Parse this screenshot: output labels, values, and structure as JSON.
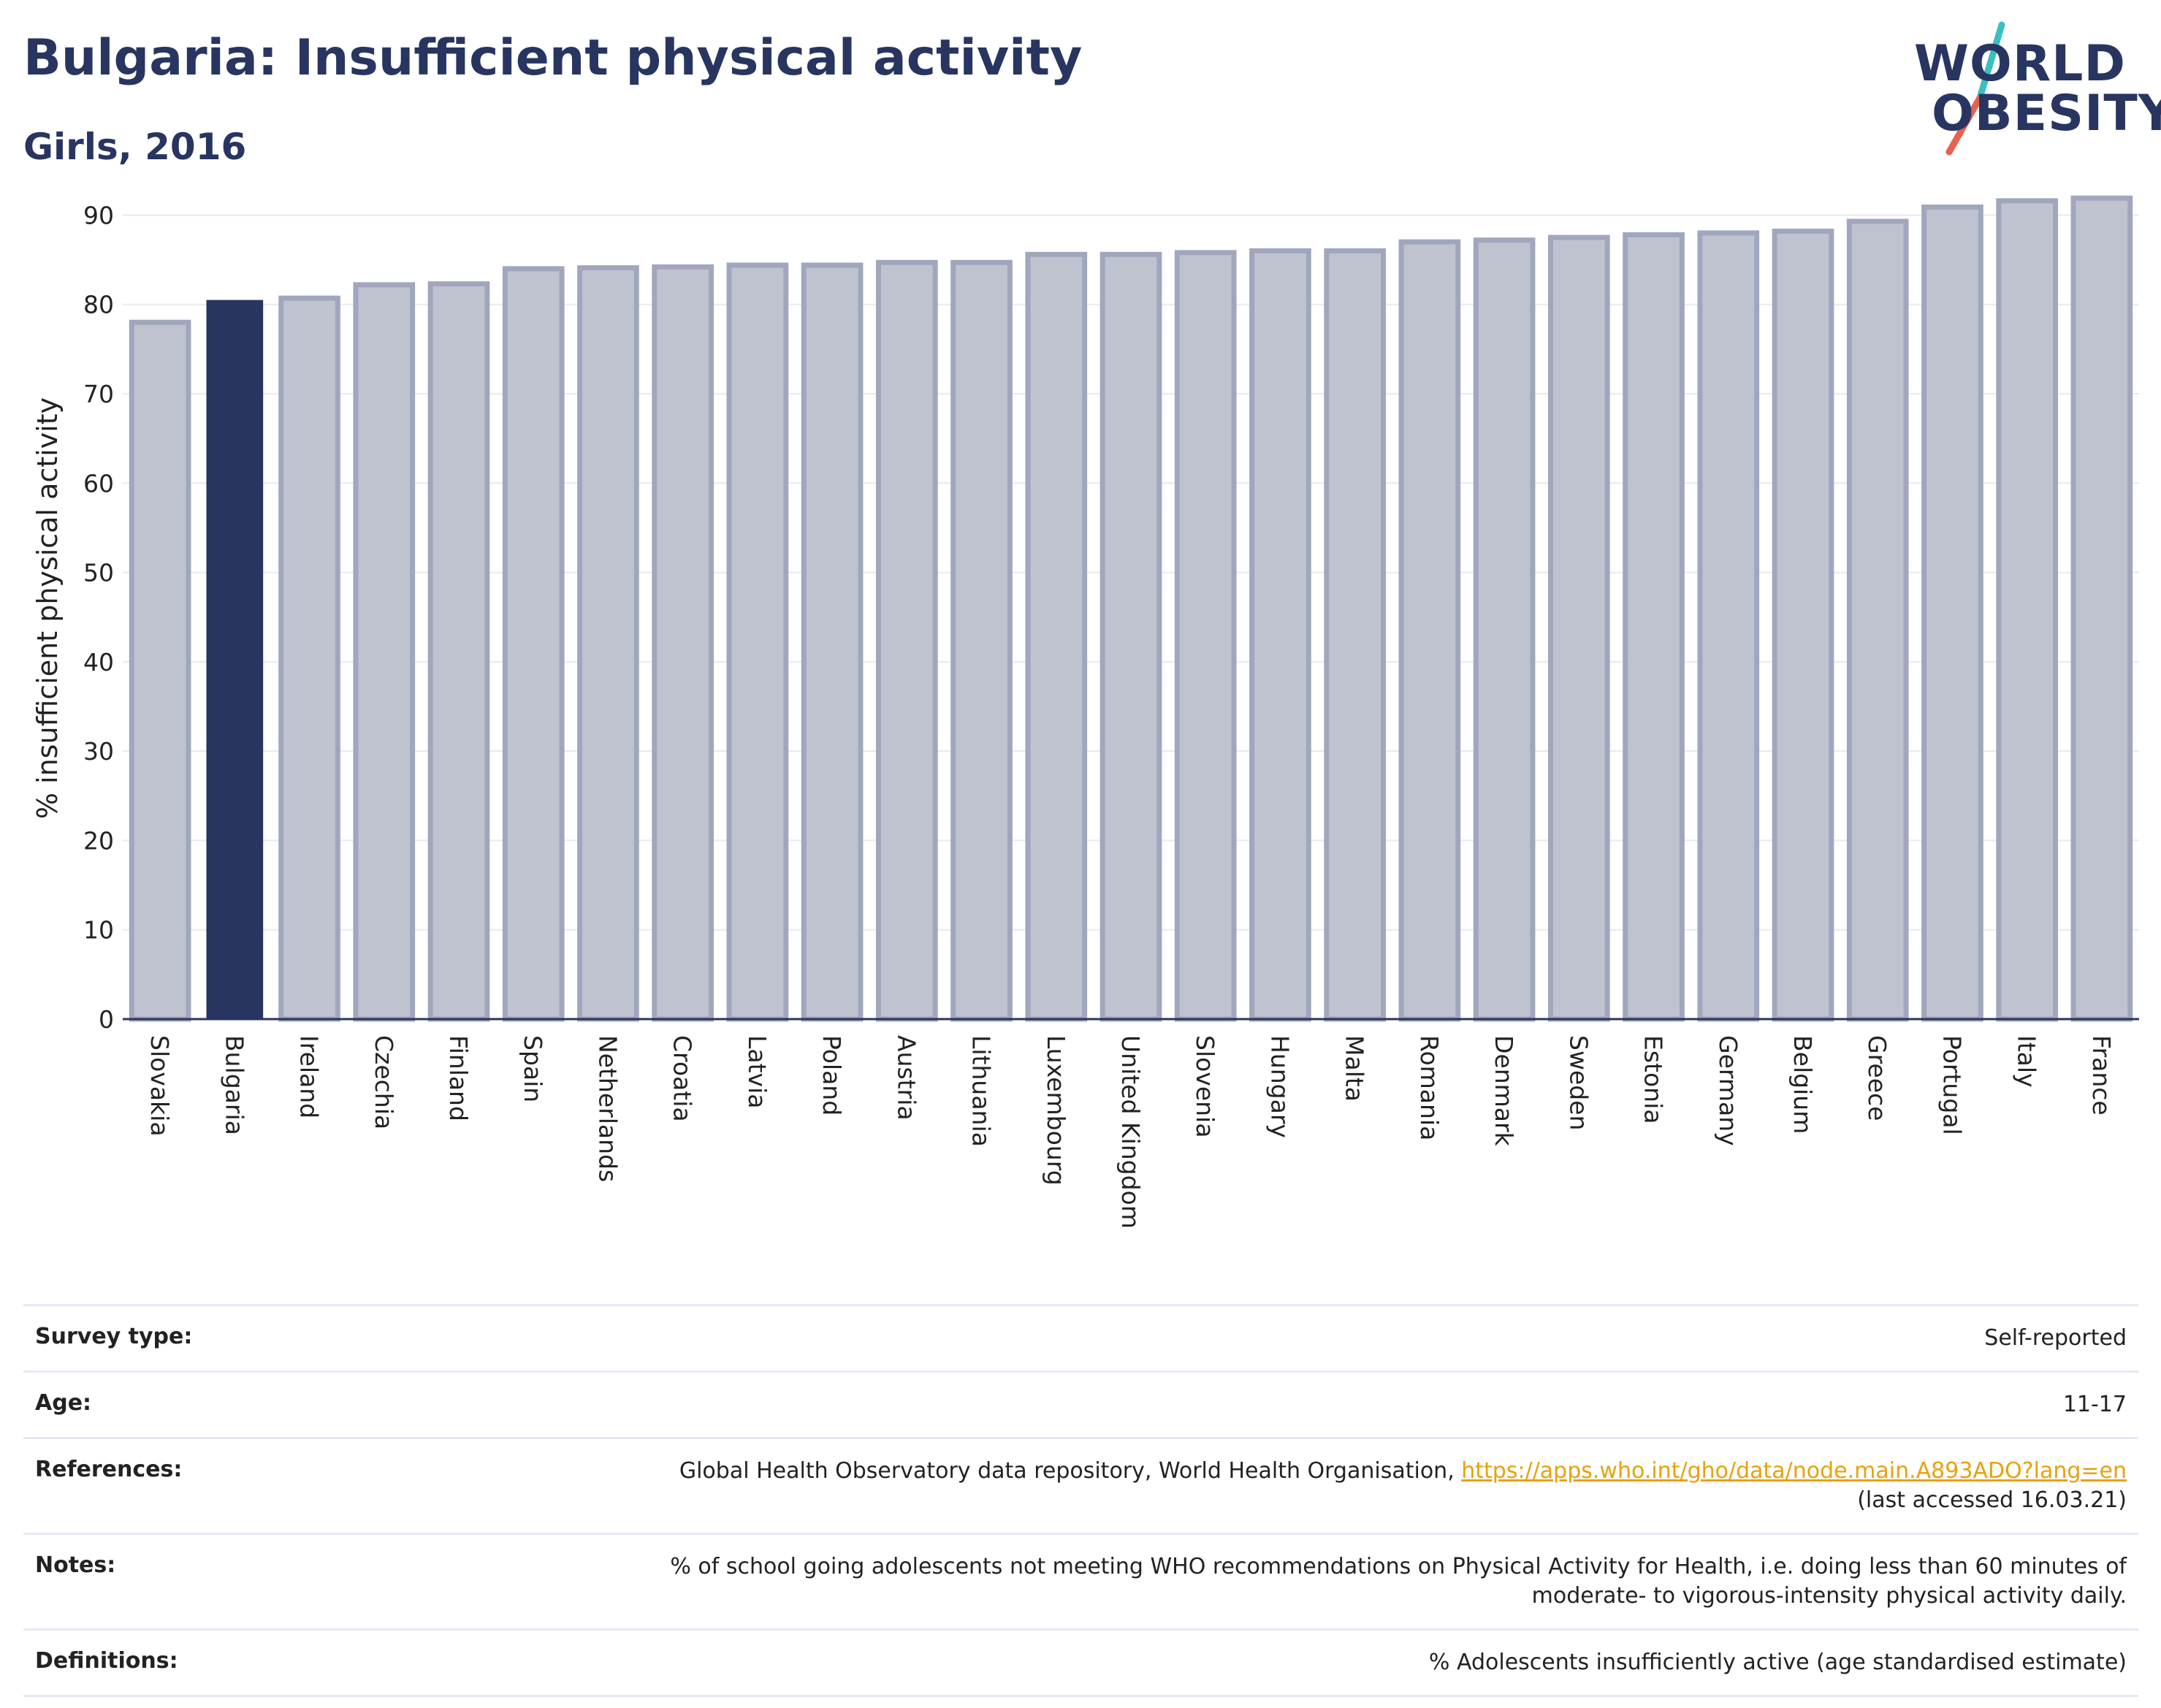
{
  "header": {
    "title": "Bulgaria: Insufficient physical activity",
    "subtitle": "Girls, 2016"
  },
  "logo": {
    "line1": "WORLD",
    "line2": "OBESITY",
    "slash_colors": [
      "#3bbfbf",
      "#e8614e"
    ]
  },
  "colors": {
    "highlight_bar": "#283560",
    "other_bar_fill": "#bfc3d0",
    "other_bar_stroke": "#a0a7bd",
    "grid": "#e8eaf0",
    "axis": "#283560"
  },
  "chart_data": {
    "type": "bar",
    "ylabel": "% insufficient physical activity",
    "xlabel": "",
    "ylim": [
      0,
      92
    ],
    "yticks": [
      0,
      10,
      20,
      30,
      40,
      50,
      60,
      70,
      80,
      90
    ],
    "grid": true,
    "highlight": "Bulgaria",
    "categories": [
      "Slovakia",
      "Bulgaria",
      "Ireland",
      "Czechia",
      "Finland",
      "Spain",
      "Netherlands",
      "Croatia",
      "Latvia",
      "Poland",
      "Austria",
      "Lithuania",
      "Luxembourg",
      "United Kingdom",
      "Slovenia",
      "Hungary",
      "Malta",
      "Romania",
      "Denmark",
      "Sweden",
      "Estonia",
      "Germany",
      "Belgium",
      "Greece",
      "Portugal",
      "Italy",
      "France"
    ],
    "values": [
      78.0,
      80.5,
      80.7,
      82.2,
      82.3,
      84.0,
      84.1,
      84.2,
      84.4,
      84.4,
      84.7,
      84.7,
      85.6,
      85.6,
      85.8,
      86.0,
      86.0,
      87.0,
      87.2,
      87.5,
      87.8,
      88.0,
      88.2,
      89.3,
      90.9,
      91.6,
      91.9
    ]
  },
  "info": {
    "survey_type_label": "Survey type:",
    "survey_type_value": "Self-reported",
    "age_label": "Age:",
    "age_value": "11-17",
    "references_label": "References:",
    "references_text": "Global Health Observatory data repository, World Health Organisation, ",
    "references_link": "https://apps.who.int/gho/data/node.main.A893ADO?lang=en",
    "references_suffix": "(last accessed 16.03.21)",
    "notes_label": "Notes:",
    "notes_line1": "% of school going adolescents not meeting WHO recommendations on Physical Activity for Health, i.e. doing less than 60 minutes of",
    "notes_line2": "moderate- to vigorous-intensity physical activity daily.",
    "definitions_label": "Definitions:",
    "definitions_value": "% Adolescents insufficiently active (age standardised estimate)"
  }
}
